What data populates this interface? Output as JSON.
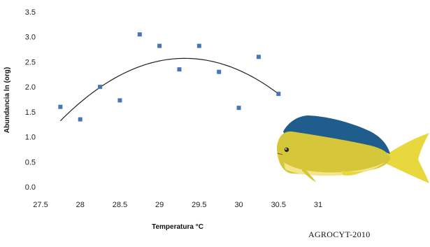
{
  "chart_data": {
    "type": "scatter",
    "title": "",
    "xlabel": "Temperatura °C",
    "ylabel": "Abundancia ln (org)",
    "xlim": [
      27.5,
      31
    ],
    "ylim": [
      0,
      3.5
    ],
    "x_ticks": [
      "27.5",
      "28",
      "28.5",
      "29",
      "29.5",
      "30",
      "30.5",
      "31"
    ],
    "y_ticks": [
      "0.0",
      "0.5",
      "1.0",
      "1.5",
      "2.0",
      "2.5",
      "3.0",
      "3.5"
    ],
    "grid": false,
    "legend": "none",
    "marker_color": "#4a74b8",
    "trend_color": "#222222",
    "points": [
      {
        "x": 27.75,
        "y": 1.6
      },
      {
        "x": 28.0,
        "y": 1.35
      },
      {
        "x": 28.25,
        "y": 2.0
      },
      {
        "x": 28.5,
        "y": 1.73
      },
      {
        "x": 28.75,
        "y": 3.05
      },
      {
        "x": 29.0,
        "y": 2.82
      },
      {
        "x": 29.25,
        "y": 2.35
      },
      {
        "x": 29.5,
        "y": 2.82
      },
      {
        "x": 29.75,
        "y": 2.3
      },
      {
        "x": 30.0,
        "y": 1.58
      },
      {
        "x": 30.25,
        "y": 2.6
      },
      {
        "x": 30.5,
        "y": 1.86
      }
    ],
    "trendline": {
      "type": "polynomial",
      "order": 2,
      "x_range": [
        27.75,
        30.5
      ],
      "samples": [
        {
          "x": 27.75,
          "y": 1.32
        },
        {
          "x": 29.35,
          "y": 2.57
        },
        {
          "x": 30.5,
          "y": 1.86
        }
      ]
    }
  },
  "credit": "AGROCYT-2010",
  "illustration": {
    "icon": "dorado-fish-icon",
    "colors": {
      "back": "#1f5d8c",
      "body": "#d6c63a",
      "belly": "#f3e58a",
      "tail": "#e8d83e"
    }
  }
}
